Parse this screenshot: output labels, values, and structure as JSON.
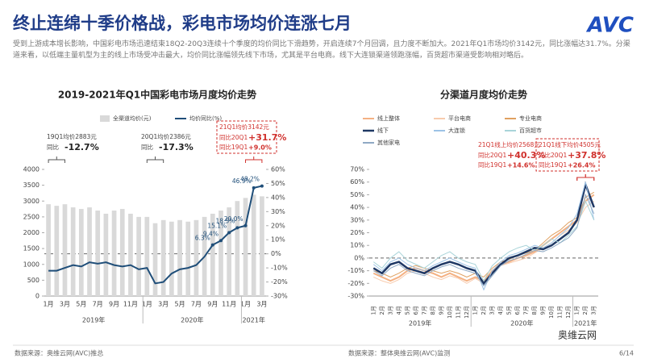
{
  "header": {
    "title": "终止连绵十季价格战，彩电市场均价连涨七月",
    "logo": "AVC",
    "text": "受到上游成本增长影响，中国彩电市场迅速结束18Q2-20Q3连续十个季度的均价同比下滑趋势，开启连续7个月回调，且力度不断加大。2021年Q1市场均价3142元，同比涨幅达31.7%。分渠道来看，以低端主量机型为主的线上市场受冲击最大，均价同比涨幅领先线下市场，尤其是平台电商。线下大连锁渠道领跑涨幅，百货超市渠道受影响相对略后。"
  },
  "footer": {
    "source_left": "数据来源：奥维云网(AVC)推总",
    "source_right": "数据来源：整体奥维云网(AVC)监测",
    "brand": "奥维云网",
    "page": "6/14"
  },
  "chart_data": [
    {
      "type": "bar",
      "title": "2019-2021年Q1中国彩电市场月度均价走势",
      "categories": [
        "1月",
        null,
        "3月",
        null,
        "5月",
        null,
        "7月",
        null,
        "9月",
        null,
        "11月",
        null,
        "1月",
        null,
        "3月",
        null,
        "5月",
        null,
        "7月",
        null,
        "9月",
        null,
        "11月",
        null,
        "1月",
        null,
        "3月"
      ],
      "x_groups": [
        "2019年",
        "2020年",
        "2021年"
      ],
      "series": [
        {
          "name": "全渠道均价(元)",
          "type": "bar",
          "color": "#d9d9d9",
          "values": [
            2900,
            2850,
            2900,
            2800,
            2750,
            2800,
            2700,
            2600,
            2700,
            2750,
            2600,
            2500,
            2500,
            2300,
            2400,
            2350,
            2400,
            2350,
            2400,
            2500,
            2600,
            2700,
            2800,
            3000,
            3100,
            3200,
            3150
          ]
        },
        {
          "name": "均价同比(%)",
          "type": "line",
          "axis": "y2",
          "color": "#1f4e79",
          "values": [
            -12,
            -12,
            -10,
            -8,
            -9,
            -6,
            -7,
            -6,
            -8,
            -9,
            -8,
            -11,
            -10,
            -21,
            -20,
            -14,
            -11,
            -10,
            -8,
            -2,
            6.3,
            9.4,
            15.1,
            18.5,
            20.0,
            46.9,
            48.2
          ],
          "value_labels": [
            null,
            null,
            null,
            null,
            null,
            null,
            null,
            null,
            null,
            null,
            null,
            null,
            null,
            null,
            null,
            null,
            null,
            null,
            null,
            null,
            "6.3%",
            "9.4%",
            "15.1%",
            "18.5%",
            "20.0%",
            "46.9%",
            "48.2%"
          ]
        }
      ],
      "ylim": [
        0,
        4000
      ],
      "yticks": [
        0,
        500,
        1000,
        1500,
        2000,
        2500,
        3000,
        3500,
        4000
      ],
      "y2lim": [
        -30,
        60
      ],
      "y2ticks": [
        {
          "value": -30,
          "label": "-30%"
        },
        {
          "value": -20,
          "label": "-20%"
        },
        {
          "value": -10,
          "label": "-10%"
        },
        {
          "value": 0,
          "label": "0%"
        },
        {
          "value": 10,
          "label": "10%"
        },
        {
          "value": 20,
          "label": "20%"
        },
        {
          "value": 30,
          "label": "30%"
        },
        {
          "value": 40,
          "label": "40%"
        },
        {
          "value": 50,
          "label": "50%"
        },
        {
          "value": 60,
          "label": "60%"
        }
      ],
      "grid": false,
      "zero_line": true,
      "annotations": [
        {
          "title": "19Q1均价2883元",
          "rows": [
            [
              "同比",
              "-12.7%"
            ]
          ]
        },
        {
          "title": "20Q1均价2386元",
          "rows": [
            [
              "同比",
              "-17.3%"
            ]
          ]
        },
        {
          "title": "21Q1均价3142元",
          "rows": [
            [
              "同比20Q1",
              "+31.7%"
            ],
            [
              "同比19Q1",
              "+9.0%"
            ]
          ]
        }
      ]
    },
    {
      "type": "line",
      "title": "分渠道月度均价走势",
      "categories": [
        "1月",
        "2月",
        "3月",
        "4月",
        "5月",
        "6月",
        "7月",
        "8月",
        "9月",
        "10月",
        "11月",
        "12月",
        "1月",
        "2月",
        "3月",
        "4月",
        "5月",
        "6月",
        "7月",
        "8月",
        "9月",
        "10月",
        "11月",
        "12月",
        "1月",
        "2月",
        "3月"
      ],
      "x_groups": [
        "2019年",
        "2020年",
        "2021年"
      ],
      "series": [
        {
          "name": "线上整体",
          "color": "#f4b183",
          "width": 2,
          "values": [
            -12,
            -15,
            -18,
            -15,
            -10,
            -8,
            -10,
            -12,
            -15,
            -12,
            -15,
            -18,
            -15,
            -18,
            -10,
            -5,
            -3,
            0,
            2,
            5,
            10,
            15,
            20,
            25,
            30,
            45,
            50
          ]
        },
        {
          "name": "平台电商",
          "color": "#f8cbad",
          "width": 1,
          "values": [
            -15,
            -18,
            -20,
            -17,
            -12,
            -10,
            -12,
            -15,
            -17,
            -14,
            -16,
            -20,
            -16,
            -20,
            -12,
            -6,
            -4,
            -2,
            0,
            4,
            8,
            12,
            18,
            22,
            28,
            40,
            45
          ]
        },
        {
          "name": "专业电商",
          "color": "#e0a060",
          "width": 1,
          "values": [
            -10,
            -12,
            -15,
            -12,
            -8,
            -6,
            -8,
            -10,
            -12,
            -10,
            -12,
            -15,
            -12,
            -15,
            -8,
            -3,
            -1,
            2,
            4,
            6,
            12,
            18,
            22,
            28,
            32,
            48,
            52
          ]
        },
        {
          "name": "线下",
          "color": "#1f3864",
          "width": 2.5,
          "values": [
            -8,
            -12,
            -5,
            -3,
            -8,
            -10,
            -12,
            -8,
            -5,
            -3,
            -5,
            -8,
            -10,
            -20,
            -12,
            -5,
            0,
            2,
            5,
            8,
            7,
            10,
            15,
            20,
            30,
            58,
            40
          ]
        },
        {
          "name": "大连锁",
          "color": "#9dc3e6",
          "width": 1,
          "values": [
            -5,
            -10,
            -3,
            0,
            -5,
            -8,
            -10,
            -6,
            -3,
            0,
            -3,
            -6,
            -8,
            -25,
            -10,
            -3,
            2,
            4,
            7,
            10,
            8,
            12,
            18,
            24,
            35,
            60,
            30
          ]
        },
        {
          "name": "百货超市",
          "color": "#a9d4d9",
          "width": 1,
          "values": [
            -3,
            -8,
            0,
            5,
            -2,
            -5,
            -8,
            -3,
            2,
            5,
            0,
            -3,
            -5,
            -18,
            -6,
            0,
            5,
            8,
            10,
            6,
            10,
            15,
            12,
            18,
            25,
            45,
            30
          ]
        },
        {
          "name": "其他家电",
          "color": "#8fa9c4",
          "width": 1,
          "values": [
            -10,
            -14,
            -8,
            -5,
            -10,
            -12,
            -14,
            -10,
            -7,
            -5,
            -8,
            -10,
            -12,
            -22,
            -14,
            -6,
            -2,
            0,
            3,
            6,
            5,
            8,
            12,
            16,
            24,
            50,
            35
          ]
        }
      ],
      "ylim": [
        -30,
        70
      ],
      "yticks": [
        {
          "value": -30,
          "label": "-30%"
        },
        {
          "value": -20,
          "label": "-20%"
        },
        {
          "value": -10,
          "label": "-10%"
        },
        {
          "value": 0,
          "label": "0%"
        },
        {
          "value": 10,
          "label": "10%"
        },
        {
          "value": 20,
          "label": "20%"
        },
        {
          "value": 30,
          "label": "30%"
        },
        {
          "value": 40,
          "label": "40%"
        },
        {
          "value": 50,
          "label": "50%"
        },
        {
          "value": 60,
          "label": "60%"
        },
        {
          "value": 70,
          "label": "70%"
        }
      ],
      "grid": false,
      "zero_line": true,
      "annotations": [
        {
          "title": "21Q1线上均价2568元",
          "rows": [
            [
              "同比20Q1",
              "+40.3%"
            ],
            [
              "同比19Q1",
              "+14.6%"
            ]
          ]
        },
        {
          "title": "21Q1线下均价4505元",
          "rows": [
            [
              "同比20Q1",
              "+37.8%"
            ],
            [
              "同比19Q1",
              "+26.4%"
            ]
          ]
        }
      ]
    }
  ]
}
